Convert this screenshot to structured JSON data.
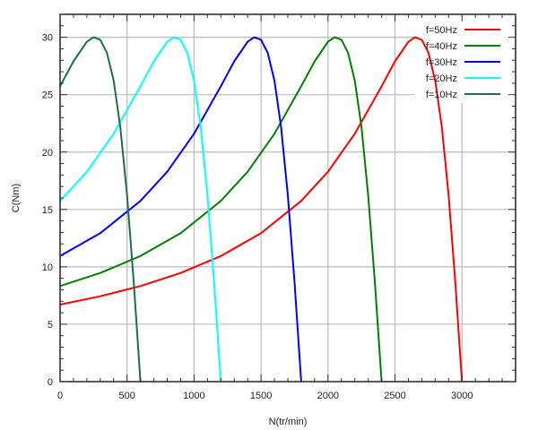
{
  "chart_data": {
    "type": "line",
    "title": "",
    "xlabel": "N(tr/min)",
    "ylabel": "C(Nm)",
    "xlim": [
      0,
      3400
    ],
    "ylim": [
      0,
      32
    ],
    "xticks": [
      0,
      500,
      1000,
      1500,
      2000,
      2500,
      3000
    ],
    "yticks": [
      0,
      5,
      10,
      15,
      20,
      25,
      30
    ],
    "grid": true,
    "legend_position": "top-right",
    "series": [
      {
        "name": "f=50Hz",
        "color": "#ff0000",
        "x": [
          0,
          300,
          600,
          900,
          1200,
          1500,
          1800,
          2000,
          2200,
          2400,
          2500,
          2600,
          2650,
          2700,
          2750,
          2800,
          2850,
          2900,
          2950,
          3000
        ],
        "y": [
          6.71,
          7.44,
          8.33,
          9.47,
          10.94,
          12.93,
          15.74,
          18.29,
          21.6,
          25.73,
          27.9,
          29.61,
          30.0,
          29.78,
          28.64,
          26.22,
          22.16,
          16.24,
          8.64,
          0
        ]
      },
      {
        "name": "f=40Hz",
        "color": "#008000",
        "x": [
          0,
          300,
          600,
          900,
          1200,
          1400,
          1600,
          1800,
          1900,
          2000,
          2050,
          2100,
          2150,
          2200,
          2250,
          2300,
          2350,
          2400
        ],
        "y": [
          8.33,
          9.47,
          10.94,
          12.93,
          15.74,
          18.29,
          21.6,
          25.73,
          27.9,
          29.61,
          30.0,
          29.78,
          28.64,
          26.22,
          22.16,
          16.24,
          8.64,
          0
        ]
      },
      {
        "name": "f=30Hz",
        "color": "#0000ff",
        "x": [
          0,
          300,
          600,
          800,
          1000,
          1200,
          1300,
          1400,
          1450,
          1500,
          1550,
          1600,
          1650,
          1700,
          1750,
          1800
        ],
        "y": [
          10.94,
          12.93,
          15.74,
          18.29,
          21.6,
          25.73,
          27.9,
          29.61,
          30.0,
          29.78,
          28.64,
          26.22,
          22.16,
          16.24,
          8.64,
          0
        ]
      },
      {
        "name": "f=20Hz",
        "color": "#00ffff",
        "x": [
          0,
          200,
          400,
          600,
          700,
          800,
          850,
          900,
          950,
          1000,
          1050,
          1100,
          1150,
          1200
        ],
        "y": [
          15.74,
          18.29,
          21.6,
          25.73,
          27.9,
          29.61,
          30.0,
          29.78,
          28.64,
          26.22,
          22.16,
          16.24,
          8.64,
          0
        ]
      },
      {
        "name": "f=10Hz",
        "color": "#196f4f",
        "x": [
          0,
          100,
          200,
          250,
          300,
          350,
          400,
          450,
          500,
          550,
          600
        ],
        "y": [
          25.73,
          27.9,
          29.61,
          30.0,
          29.78,
          28.64,
          26.22,
          22.16,
          16.24,
          8.64,
          0
        ]
      }
    ]
  }
}
